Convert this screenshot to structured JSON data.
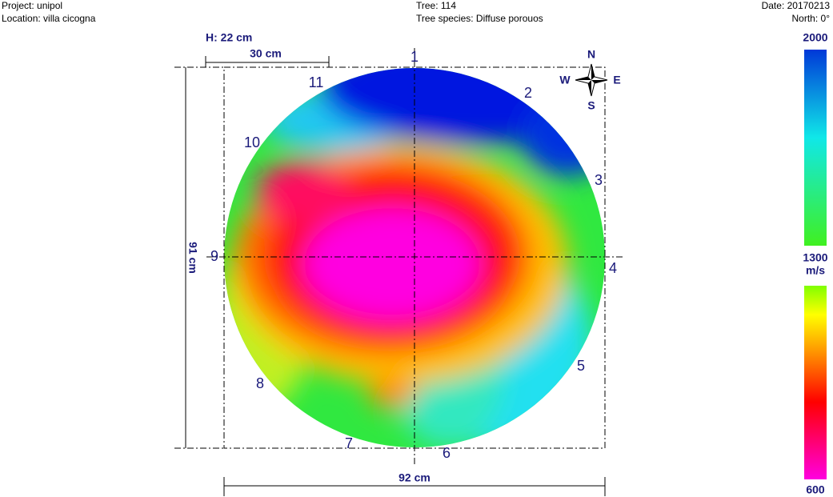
{
  "header": {
    "project": "Project: unipol",
    "location": "Location: villa cicogna",
    "tree": "Tree: 114",
    "species": "Tree species: Diffuse porouos",
    "date": "Date: 20170213",
    "north": "North: 0°"
  },
  "dimensions": {
    "height": "H: 22 cm",
    "scale": "30 cm",
    "vertical": "91 cm",
    "horizontal": "92 cm"
  },
  "compass": {
    "n": "N",
    "w": "W",
    "e": "E",
    "s": "S"
  },
  "sensors": [
    "1",
    "2",
    "3",
    "4",
    "5",
    "6",
    "7",
    "8",
    "9",
    "10",
    "11"
  ],
  "legend": {
    "top": "2000",
    "middle": "1300",
    "unit": "m/s",
    "bottom": "600"
  }
}
